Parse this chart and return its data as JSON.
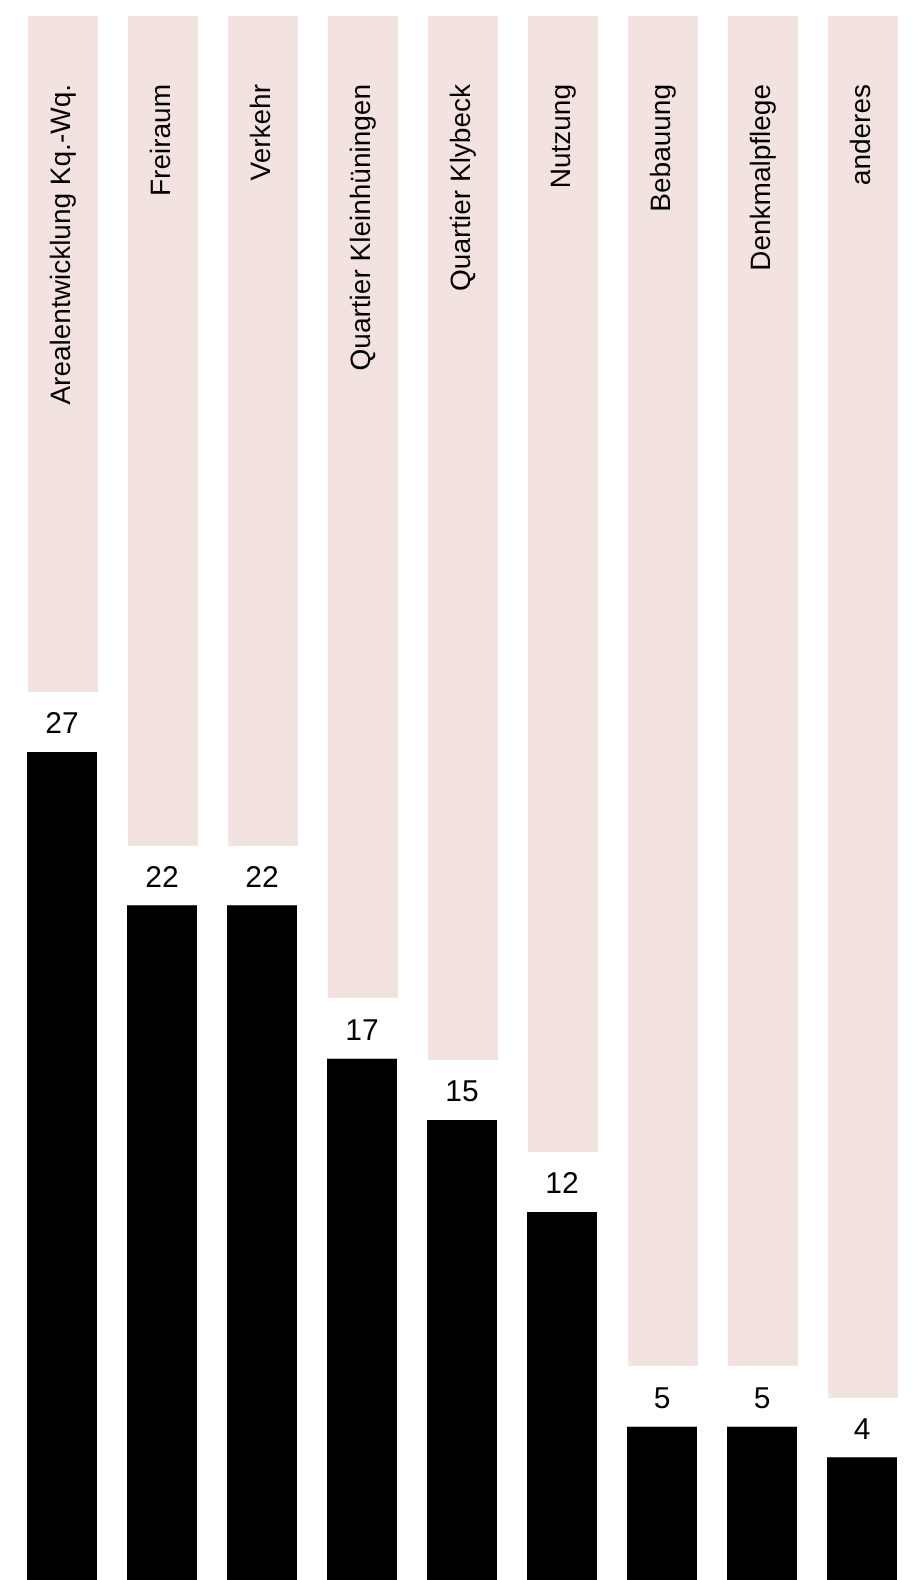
{
  "chart_data": {
    "type": "bar",
    "categories": [
      "Arealentwicklung Kq.-Wq.",
      "Freiraum",
      "Verkehr",
      "Quartier Kleinhüningen",
      "Quartier Klybeck",
      "Nutzung",
      "Bebauung",
      "Denkmalpflege",
      "anderes"
    ],
    "values": [
      27,
      22,
      22,
      17,
      15,
      12,
      5,
      5,
      4
    ],
    "color": "#000000",
    "ylim": [
      0,
      51
    ],
    "data_labels": true
  }
}
